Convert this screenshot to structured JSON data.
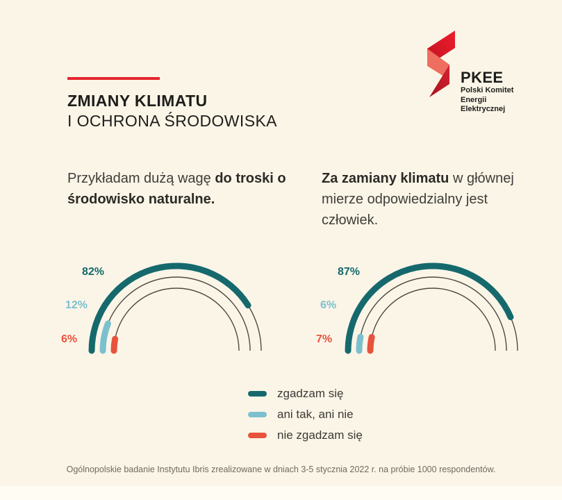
{
  "header": {
    "title_line1": "ZMIANY KLIMATU",
    "title_line2": "I OCHRONA ŚRODOWISKA"
  },
  "logo": {
    "name": "PKEE",
    "subtitle_line1": "Polski Komitet",
    "subtitle_line2": "Energii Elektrycznej"
  },
  "colors": {
    "background": "#FBF5E7",
    "accent_red": "#E4252D",
    "agree_teal": "#15696D",
    "neutral_blue": "#7CC0CF",
    "disagree_coral": "#E8533D",
    "track_gray": "#4E4941",
    "bottom_strip": "#FFFDF3",
    "title_text": "#1D1D1B",
    "body_text": "#3E3D39",
    "footnote_text": "#6F6A60"
  },
  "chart_data": [
    {
      "type": "gauge",
      "shape": "semicircle",
      "angle_range_deg": 180,
      "title": "Przykładam dużą wagę do troski o środowisko naturalne.",
      "question_segments": [
        {
          "text": "Przykładam dużą wagę ",
          "bold": false
        },
        {
          "text": "do troski o środowisko naturalne.",
          "bold": true
        }
      ],
      "series": [
        {
          "label": "zgadzam się",
          "value": 82,
          "display": "82%",
          "color": "#15696D"
        },
        {
          "label": "ani tak, ani nie",
          "value": 12,
          "display": "12%",
          "color": "#7CC0CF"
        },
        {
          "label": "nie zgadzam się",
          "value": 6,
          "display": "6%",
          "color": "#E8533D"
        }
      ]
    },
    {
      "type": "gauge",
      "shape": "semicircle",
      "angle_range_deg": 180,
      "title": "Za zamiany klimatu w głównej mierze odpowiedzialny jest człowiek.",
      "question_segments": [
        {
          "text": "Za zamiany klimatu",
          "bold": true
        },
        {
          "text": " w głównej mierze odpowiedzialny jest człowiek.",
          "bold": false
        }
      ],
      "series": [
        {
          "label": "zgadzam się",
          "value": 87,
          "display": "87%",
          "color": "#15696D"
        },
        {
          "label": "ani tak, ani nie",
          "value": 6,
          "display": "6%",
          "color": "#7CC0CF"
        },
        {
          "label": "nie zgadzam się",
          "value": 7,
          "display": "7%",
          "color": "#E8533D"
        }
      ]
    }
  ],
  "legend": {
    "items": [
      {
        "label": "zgadzam się",
        "color": "#15696D"
      },
      {
        "label": "ani tak, ani nie",
        "color": "#7CC0CF"
      },
      {
        "label": "nie zgadzam się",
        "color": "#E8533D"
      }
    ]
  },
  "footer": {
    "text": "Ogólnopolskie badanie Instytutu Ibris zrealizowane w dniach 3-5 stycznia 2022 r. na próbie 1000 respondentów."
  }
}
